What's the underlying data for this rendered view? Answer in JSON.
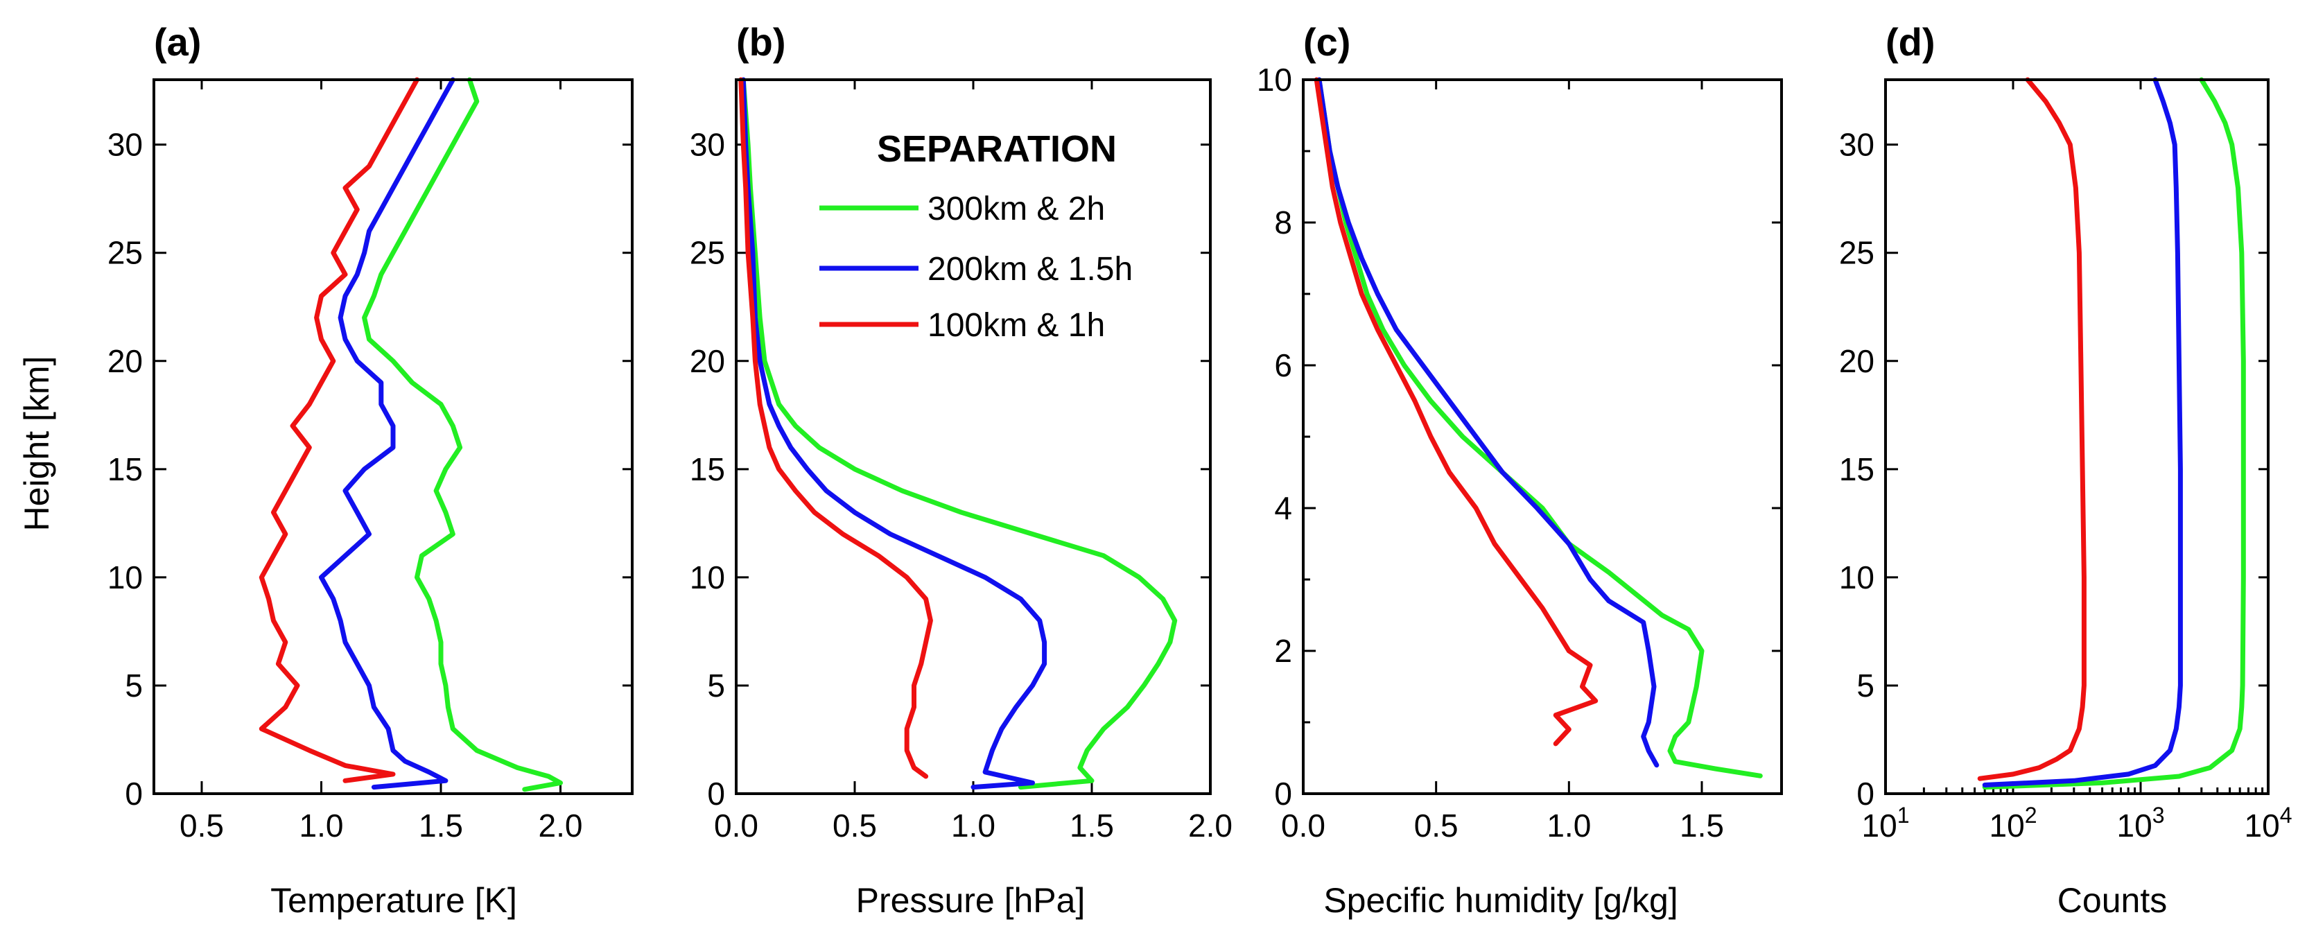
{
  "figure": {
    "legend": {
      "title": "SEPARATION",
      "entries": [
        {
          "label": "300km & 2h",
          "color": "#22ee22"
        },
        {
          "label": "200km & 1.5h",
          "color": "#1010ee"
        },
        {
          "label": "100km & 1h",
          "color": "#ee1111"
        }
      ]
    }
  },
  "chart_data": [
    {
      "type": "line",
      "panel": "(a)",
      "title": "(a)",
      "xlabel": "Temperature [K]",
      "ylabel": "Height [km]",
      "xlim": [
        0.3,
        2.3
      ],
      "ylim": [
        0,
        33
      ],
      "xticks": [
        0.5,
        1.0,
        1.5,
        2.0
      ],
      "xtick_labels": [
        "0.5",
        "1.0",
        "1.5",
        "2.0"
      ],
      "yticks": [
        0,
        5,
        10,
        15,
        20,
        25,
        30
      ],
      "ytick_labels": [
        "0",
        "5",
        "10",
        "15",
        "20",
        "25",
        "30"
      ],
      "series": [
        {
          "name": "300km & 2h",
          "color": "#22ee22",
          "y": [
            0.2,
            0.5,
            0.8,
            1.2,
            2,
            3,
            4,
            5,
            6,
            7,
            8,
            9,
            10,
            11,
            12,
            13,
            14,
            15,
            16,
            17,
            18,
            19,
            20,
            21,
            22,
            23,
            24,
            25,
            26,
            27,
            28,
            29,
            30,
            31,
            32,
            33
          ],
          "x": [
            1.85,
            2.0,
            1.95,
            1.82,
            1.65,
            1.55,
            1.53,
            1.52,
            1.5,
            1.5,
            1.48,
            1.45,
            1.4,
            1.42,
            1.55,
            1.52,
            1.48,
            1.52,
            1.58,
            1.55,
            1.5,
            1.38,
            1.3,
            1.2,
            1.18,
            1.22,
            1.25,
            1.3,
            1.35,
            1.4,
            1.45,
            1.5,
            1.55,
            1.6,
            1.65,
            1.62
          ]
        },
        {
          "name": "200km & 1.5h",
          "color": "#1010ee",
          "y": [
            0.3,
            0.6,
            1.0,
            1.5,
            2,
            3,
            4,
            5,
            6,
            7,
            8,
            9,
            10,
            11,
            12,
            13,
            14,
            15,
            16,
            17,
            18,
            19,
            20,
            21,
            22,
            23,
            24,
            25,
            26,
            27,
            28,
            29,
            30,
            31,
            32,
            33
          ],
          "x": [
            1.22,
            1.52,
            1.45,
            1.35,
            1.3,
            1.28,
            1.22,
            1.2,
            1.15,
            1.1,
            1.08,
            1.05,
            1.0,
            1.1,
            1.2,
            1.15,
            1.1,
            1.18,
            1.3,
            1.3,
            1.25,
            1.25,
            1.15,
            1.1,
            1.08,
            1.1,
            1.15,
            1.18,
            1.2,
            1.25,
            1.3,
            1.35,
            1.4,
            1.45,
            1.5,
            1.55
          ]
        },
        {
          "name": "100km & 1h",
          "color": "#ee1111",
          "y": [
            0.6,
            0.9,
            1.3,
            2,
            3,
            4,
            5,
            6,
            7,
            8,
            9,
            10,
            11,
            12,
            13,
            14,
            15,
            16,
            17,
            18,
            19,
            20,
            21,
            22,
            23,
            24,
            25,
            26,
            27,
            28,
            29,
            30,
            31,
            32,
            33
          ],
          "x": [
            1.1,
            1.3,
            1.1,
            0.95,
            0.75,
            0.85,
            0.9,
            0.82,
            0.85,
            0.8,
            0.78,
            0.75,
            0.8,
            0.85,
            0.8,
            0.85,
            0.9,
            0.95,
            0.88,
            0.95,
            1.0,
            1.05,
            1.0,
            0.98,
            1.0,
            1.1,
            1.05,
            1.1,
            1.15,
            1.1,
            1.2,
            1.25,
            1.3,
            1.35,
            1.4
          ]
        }
      ]
    },
    {
      "type": "line",
      "panel": "(b)",
      "title": "(b)",
      "xlabel": "Pressure [hPa]",
      "ylabel": "",
      "xlim": [
        0.0,
        2.0
      ],
      "ylim": [
        0,
        33
      ],
      "xticks": [
        0.0,
        0.5,
        1.0,
        1.5,
        2.0
      ],
      "xtick_labels": [
        "0.0",
        "0.5",
        "1.0",
        "1.5",
        "2.0"
      ],
      "yticks": [
        0,
        5,
        10,
        15,
        20,
        25,
        30
      ],
      "ytick_labels": [
        "0",
        "5",
        "10",
        "15",
        "20",
        "25",
        "30"
      ],
      "series": [
        {
          "name": "300km & 2h",
          "color": "#22ee22",
          "y": [
            0.3,
            0.6,
            1.2,
            2,
            3,
            4,
            5,
            6,
            7,
            8,
            9,
            10,
            11,
            12,
            13,
            14,
            15,
            16,
            17,
            18,
            19,
            20,
            22,
            25,
            28,
            30,
            33
          ],
          "x": [
            1.2,
            1.5,
            1.45,
            1.48,
            1.55,
            1.65,
            1.72,
            1.78,
            1.83,
            1.85,
            1.8,
            1.7,
            1.55,
            1.25,
            0.95,
            0.7,
            0.5,
            0.35,
            0.25,
            0.18,
            0.15,
            0.12,
            0.1,
            0.08,
            0.06,
            0.05,
            0.03
          ]
        },
        {
          "name": "200km & 1.5h",
          "color": "#1010ee",
          "y": [
            0.3,
            0.5,
            1.0,
            2,
            3,
            4,
            5,
            6,
            7,
            8,
            9,
            10,
            11,
            12,
            13,
            14,
            15,
            16,
            17,
            18,
            19,
            20,
            22,
            25,
            28,
            30,
            33
          ],
          "x": [
            1.0,
            1.25,
            1.05,
            1.08,
            1.12,
            1.18,
            1.25,
            1.3,
            1.3,
            1.28,
            1.2,
            1.05,
            0.85,
            0.65,
            0.5,
            0.38,
            0.3,
            0.23,
            0.18,
            0.14,
            0.12,
            0.1,
            0.08,
            0.07,
            0.05,
            0.04,
            0.03
          ]
        },
        {
          "name": "100km & 1h",
          "color": "#ee1111",
          "y": [
            0.8,
            1.2,
            2,
            3,
            4,
            5,
            6,
            7,
            8,
            9,
            10,
            11,
            12,
            13,
            14,
            15,
            16,
            17,
            18,
            19,
            20,
            22,
            25,
            28,
            30,
            33
          ],
          "x": [
            0.8,
            0.75,
            0.72,
            0.72,
            0.75,
            0.75,
            0.78,
            0.8,
            0.82,
            0.8,
            0.72,
            0.6,
            0.45,
            0.33,
            0.25,
            0.18,
            0.14,
            0.12,
            0.1,
            0.09,
            0.08,
            0.07,
            0.05,
            0.04,
            0.03,
            0.02
          ]
        }
      ]
    },
    {
      "type": "line",
      "panel": "(c)",
      "title": "(c)",
      "xlabel": "Specific humidity [g/kg]",
      "ylabel": "",
      "xlim": [
        0.0,
        1.8
      ],
      "ylim": [
        0,
        10
      ],
      "xticks": [
        0.0,
        0.5,
        1.0,
        1.5
      ],
      "xtick_labels": [
        "0.0",
        "0.5",
        "1.0",
        "1.5"
      ],
      "yticks": [
        0,
        2,
        4,
        6,
        8,
        10
      ],
      "ytick_labels": [
        "0",
        "2",
        "4",
        "6",
        "8",
        "10"
      ],
      "series": [
        {
          "name": "300km & 2h",
          "color": "#22ee22",
          "y": [
            0.25,
            0.35,
            0.45,
            0.6,
            0.8,
            1.0,
            1.5,
            2.0,
            2.3,
            2.5,
            2.8,
            3.1,
            3.5,
            4.0,
            4.5,
            5.0,
            5.5,
            6.0,
            6.5,
            7.0,
            7.5,
            8.0,
            8.5,
            9.0,
            9.5,
            10.0
          ],
          "x": [
            1.72,
            1.55,
            1.4,
            1.38,
            1.4,
            1.45,
            1.48,
            1.5,
            1.45,
            1.35,
            1.25,
            1.15,
            1.0,
            0.9,
            0.75,
            0.6,
            0.48,
            0.38,
            0.3,
            0.24,
            0.2,
            0.16,
            0.13,
            0.1,
            0.08,
            0.06
          ]
        },
        {
          "name": "200km & 1.5h",
          "color": "#1010ee",
          "y": [
            0.4,
            0.6,
            0.8,
            1.0,
            1.5,
            2.0,
            2.4,
            2.7,
            3.0,
            3.5,
            4.0,
            4.5,
            5.0,
            5.5,
            6.0,
            6.5,
            7.0,
            7.5,
            8.0,
            8.5,
            9.0,
            9.5,
            10.0
          ],
          "x": [
            1.33,
            1.3,
            1.28,
            1.3,
            1.32,
            1.3,
            1.28,
            1.15,
            1.08,
            1.0,
            0.88,
            0.75,
            0.65,
            0.55,
            0.45,
            0.35,
            0.28,
            0.22,
            0.17,
            0.13,
            0.1,
            0.08,
            0.06
          ]
        },
        {
          "name": "100km & 1h",
          "color": "#ee1111",
          "y": [
            0.7,
            0.9,
            1.1,
            1.3,
            1.5,
            1.8,
            2.0,
            2.3,
            2.6,
            3.0,
            3.5,
            4.0,
            4.5,
            5.0,
            5.5,
            6.0,
            6.5,
            7.0,
            7.5,
            8.0,
            8.5,
            9.0,
            9.5,
            10.0
          ],
          "x": [
            0.95,
            1.0,
            0.95,
            1.1,
            1.05,
            1.08,
            1.0,
            0.95,
            0.9,
            0.82,
            0.72,
            0.65,
            0.55,
            0.48,
            0.42,
            0.35,
            0.28,
            0.22,
            0.18,
            0.14,
            0.11,
            0.09,
            0.07,
            0.05
          ]
        }
      ]
    },
    {
      "type": "line",
      "panel": "(d)",
      "title": "(d)",
      "xlabel": "Counts",
      "ylabel": "",
      "xscale": "log",
      "xlim": [
        10,
        10000
      ],
      "ylim": [
        0,
        33
      ],
      "xticks": [
        10,
        100,
        1000,
        10000
      ],
      "xtick_labels": [
        [
          "10",
          "1"
        ],
        [
          "10",
          "2"
        ],
        [
          "10",
          "3"
        ],
        [
          "10",
          "4"
        ]
      ],
      "yticks": [
        0,
        5,
        10,
        15,
        20,
        25,
        30
      ],
      "ytick_labels": [
        "0",
        "5",
        "10",
        "15",
        "20",
        "25",
        "30"
      ],
      "series": [
        {
          "name": "300km & 2h",
          "color": "#22ee22",
          "y": [
            0.3,
            0.5,
            0.8,
            1.2,
            2,
            3,
            4,
            5,
            10,
            15,
            20,
            25,
            28,
            30,
            31,
            32,
            33
          ],
          "x": [
            60,
            500,
            2000,
            3500,
            5200,
            6000,
            6200,
            6300,
            6400,
            6400,
            6400,
            6200,
            5800,
            5200,
            4600,
            3800,
            3000
          ]
        },
        {
          "name": "200km & 1.5h",
          "color": "#1010ee",
          "y": [
            0.4,
            0.6,
            0.9,
            1.3,
            2,
            3,
            4,
            5,
            10,
            15,
            20,
            25,
            28,
            30,
            31,
            32,
            33
          ],
          "x": [
            60,
            300,
            800,
            1300,
            1700,
            1900,
            2000,
            2050,
            2050,
            2050,
            2000,
            1950,
            1900,
            1850,
            1700,
            1500,
            1300
          ]
        },
        {
          "name": "100km & 1h",
          "color": "#ee1111",
          "y": [
            0.7,
            0.9,
            1.2,
            1.6,
            2,
            3,
            4,
            5,
            10,
            15,
            20,
            25,
            28,
            30,
            31,
            32,
            33
          ],
          "x": [
            55,
            100,
            160,
            220,
            280,
            330,
            350,
            360,
            360,
            350,
            340,
            330,
            310,
            280,
            230,
            180,
            130
          ]
        }
      ]
    }
  ]
}
